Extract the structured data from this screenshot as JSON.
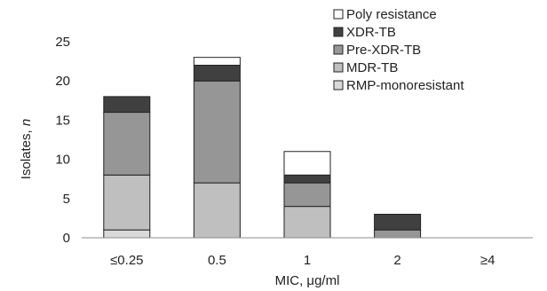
{
  "chart_data": {
    "type": "bar",
    "stacked": true,
    "title": "",
    "xlabel": "MIC, μg/ml",
    "ylabel_main": "Isolates, ",
    "ylabel_italic": "n",
    "categories": [
      "≤0.25",
      "0.5",
      "1",
      "2",
      "≥4"
    ],
    "ylim": [
      0,
      25
    ],
    "yticks": [
      "0",
      "5",
      "10",
      "15",
      "20",
      "25"
    ],
    "grid": false,
    "legend_position": "top-right",
    "series": [
      {
        "name": "RMP-monoresistant",
        "color": "#d9d9d9",
        "values": [
          1,
          0,
          0,
          0,
          0
        ]
      },
      {
        "name": "MDR-TB",
        "color": "#bfbfbf",
        "values": [
          7,
          7,
          4,
          0,
          0
        ]
      },
      {
        "name": "Pre-XDR-TB",
        "color": "#969696",
        "values": [
          8,
          13,
          3,
          1,
          0
        ]
      },
      {
        "name": "XDR-TB",
        "color": "#404040",
        "values": [
          2,
          2,
          1,
          2,
          0
        ]
      },
      {
        "name": "Poly resistance",
        "color": "#ffffff",
        "values": [
          0,
          1,
          3,
          0,
          0
        ]
      }
    ],
    "legend_order": [
      "Poly resistance",
      "XDR-TB",
      "Pre-XDR-TB",
      "MDR-TB",
      "RMP-monoresistant"
    ]
  }
}
